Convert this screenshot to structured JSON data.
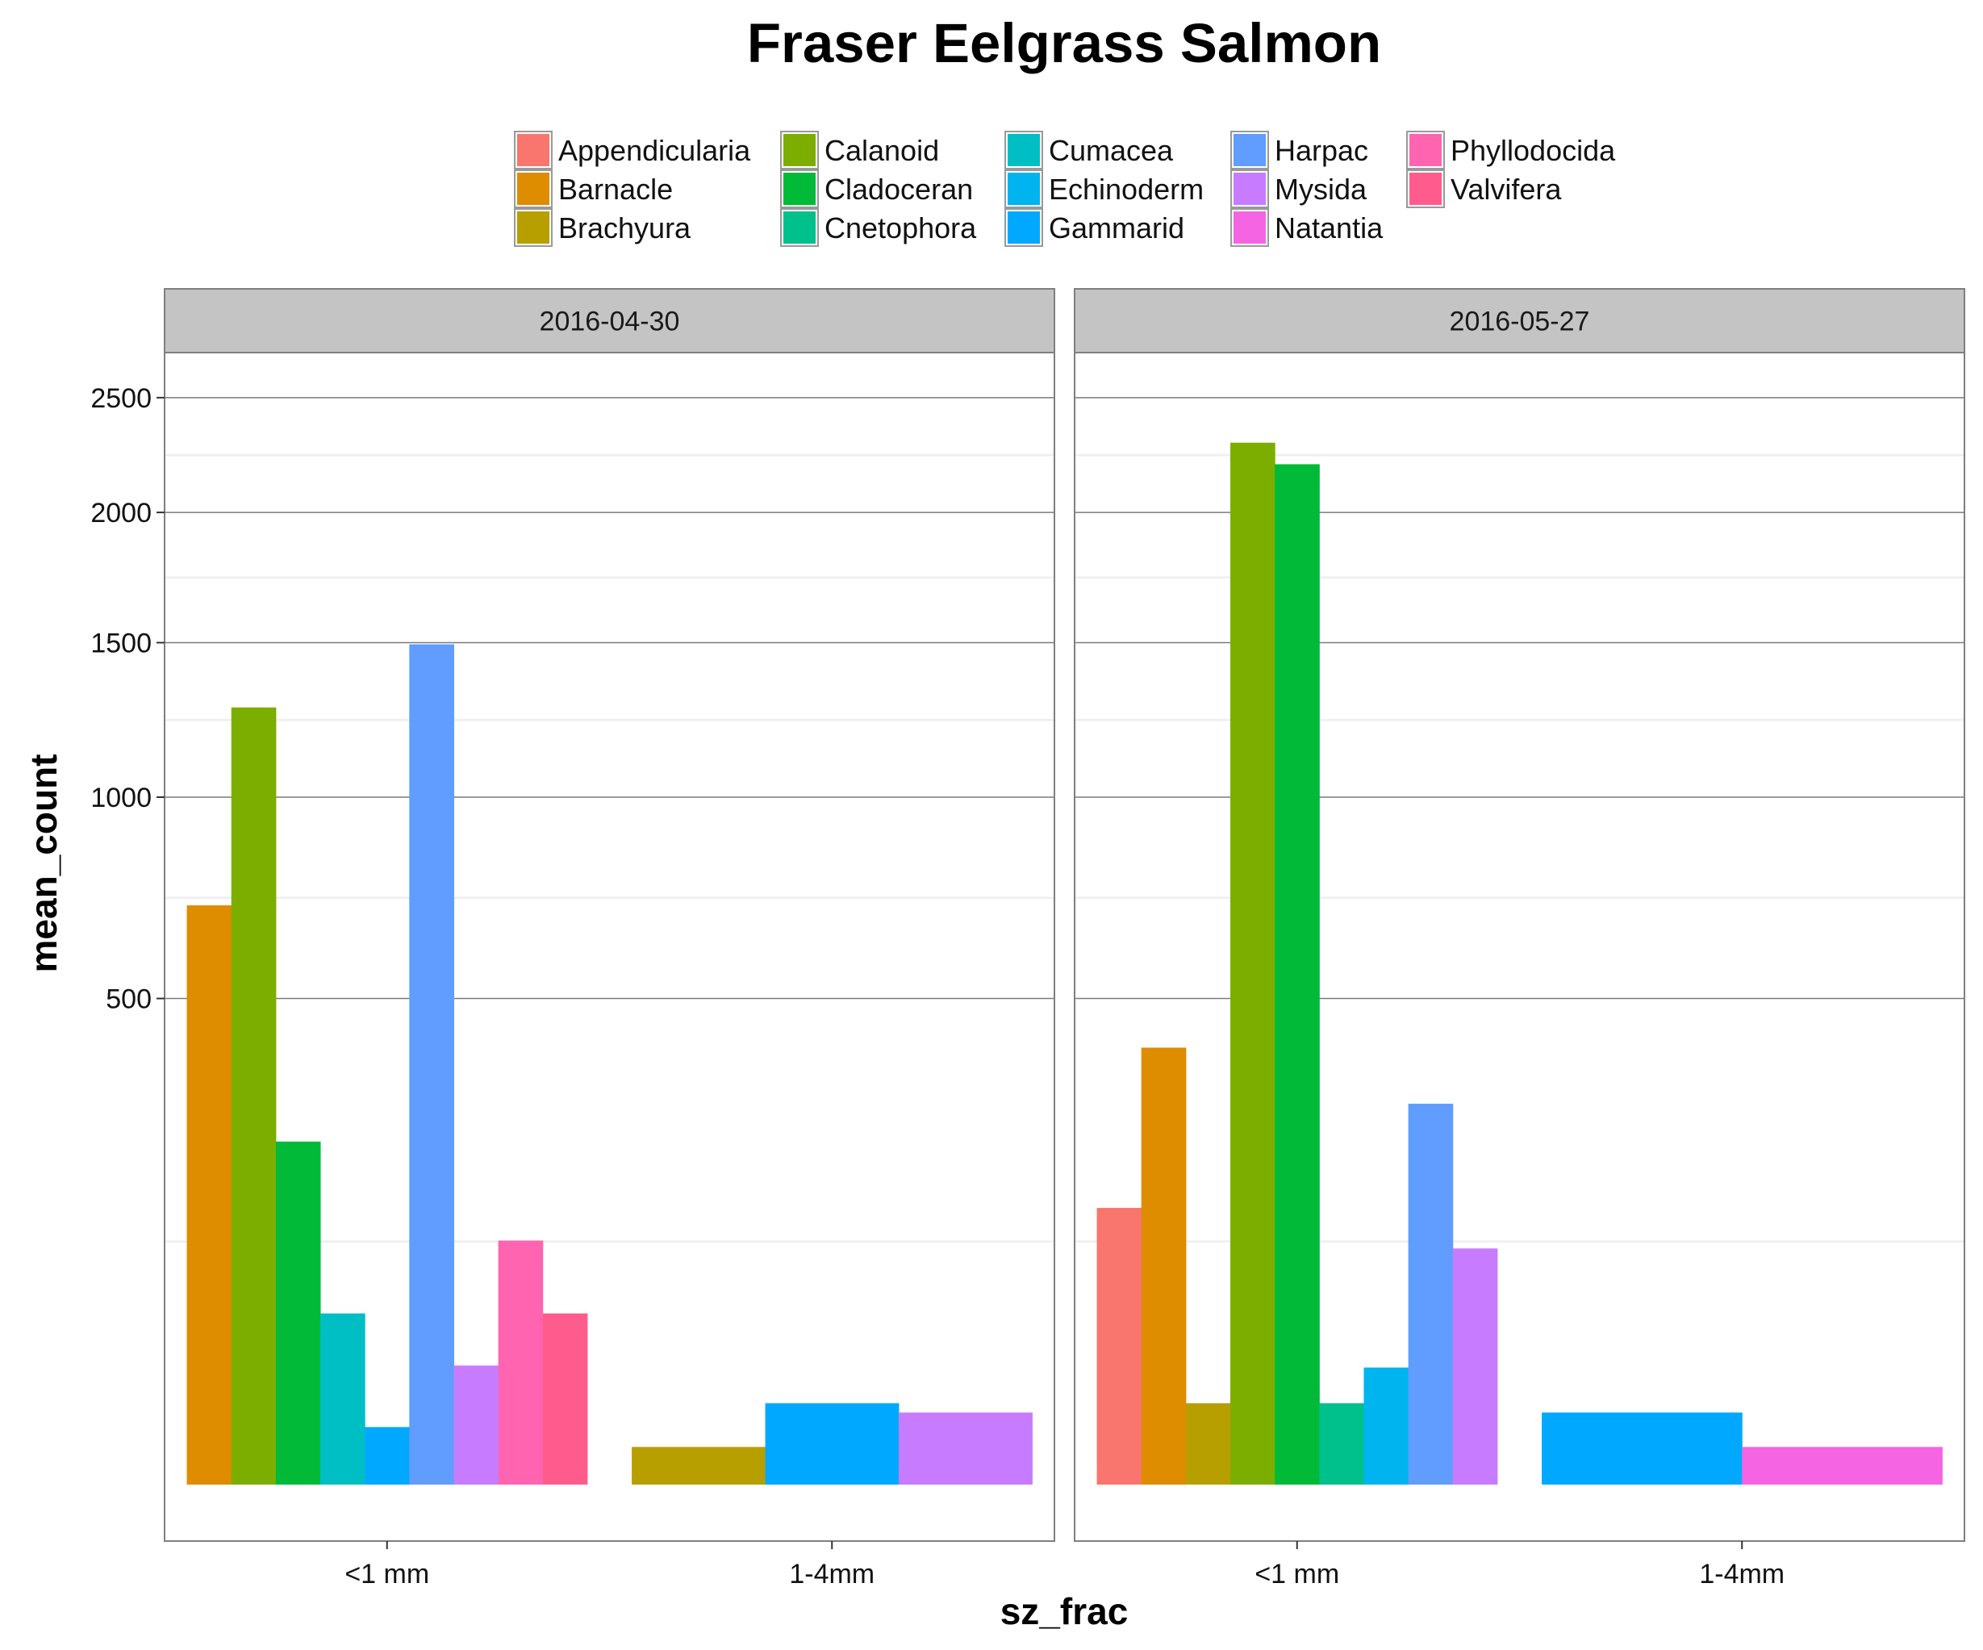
{
  "chart_data": {
    "type": "bar",
    "title": "Fraser Eelgrass Salmon",
    "xlabel": "sz_frac",
    "ylabel": "mean_count",
    "y_scale": "sqrt",
    "ylim": [
      0,
      2500
    ],
    "y_ticks": [
      500,
      1000,
      1500,
      2000,
      2500
    ],
    "grid": true,
    "legend_position": "top",
    "categories": [
      "<1 mm",
      "1-4mm"
    ],
    "facets": [
      "2016-04-30",
      "2016-05-27"
    ],
    "series": [
      {
        "name": "Appendicularia",
        "color": "#F8766D",
        "values": {
          "2016-04-30": [
            null,
            null
          ],
          "2016-05-27": [
            162,
            null
          ]
        }
      },
      {
        "name": "Barnacle",
        "color": "#DE8C00",
        "values": {
          "2016-04-30": [
            710,
            null
          ],
          "2016-05-27": [
            404,
            null
          ]
        }
      },
      {
        "name": "Brachyura",
        "color": "#B79F00",
        "values": {
          "2016-04-30": [
            null,
            3
          ],
          "2016-05-27": [
            14,
            null
          ]
        }
      },
      {
        "name": "Calanoid",
        "color": "#7CAE00",
        "values": {
          "2016-04-30": [
            1278,
            null
          ],
          "2016-05-27": [
            2297,
            null
          ]
        }
      },
      {
        "name": "Cladoceran",
        "color": "#00BA38",
        "values": {
          "2016-04-30": [
            249,
            null
          ],
          "2016-05-27": [
            2203,
            null
          ]
        }
      },
      {
        "name": "Cnetophora",
        "color": "#00C08B",
        "values": {
          "2016-04-30": [
            null,
            null
          ],
          "2016-05-27": [
            14,
            null
          ]
        }
      },
      {
        "name": "Cumacea",
        "color": "#00BFC4",
        "values": {
          "2016-04-30": [
            62,
            null
          ],
          "2016-05-27": [
            null,
            null
          ]
        }
      },
      {
        "name": "Echinoderm",
        "color": "#00B4F0",
        "values": {
          "2016-04-30": [
            null,
            null
          ],
          "2016-05-27": [
            29,
            null
          ]
        }
      },
      {
        "name": "Gammarid",
        "color": "#00A9FF",
        "values": {
          "2016-04-30": [
            7,
            14
          ],
          "2016-05-27": [
            null,
            11
          ]
        }
      },
      {
        "name": "Harpac",
        "color": "#619CFF",
        "values": {
          "2016-04-30": [
            1494,
            null
          ],
          "2016-05-27": [
            307,
            null
          ]
        }
      },
      {
        "name": "Mysida",
        "color": "#C77CFF",
        "values": {
          "2016-04-30": [
            30,
            11
          ],
          "2016-05-27": [
            118,
            null
          ]
        }
      },
      {
        "name": "Natantia",
        "color": "#F564E3",
        "values": {
          "2016-04-30": [
            null,
            null
          ],
          "2016-05-27": [
            null,
            3
          ]
        }
      },
      {
        "name": "Phyllodocida",
        "color": "#FF64B0",
        "values": {
          "2016-04-30": [
            126,
            null
          ],
          "2016-05-27": [
            null,
            null
          ]
        }
      },
      {
        "name": "Valvifera",
        "color": "#FF5C8D",
        "values": {
          "2016-04-30": [
            62,
            null
          ],
          "2016-05-27": [
            null,
            null
          ]
        }
      }
    ]
  }
}
